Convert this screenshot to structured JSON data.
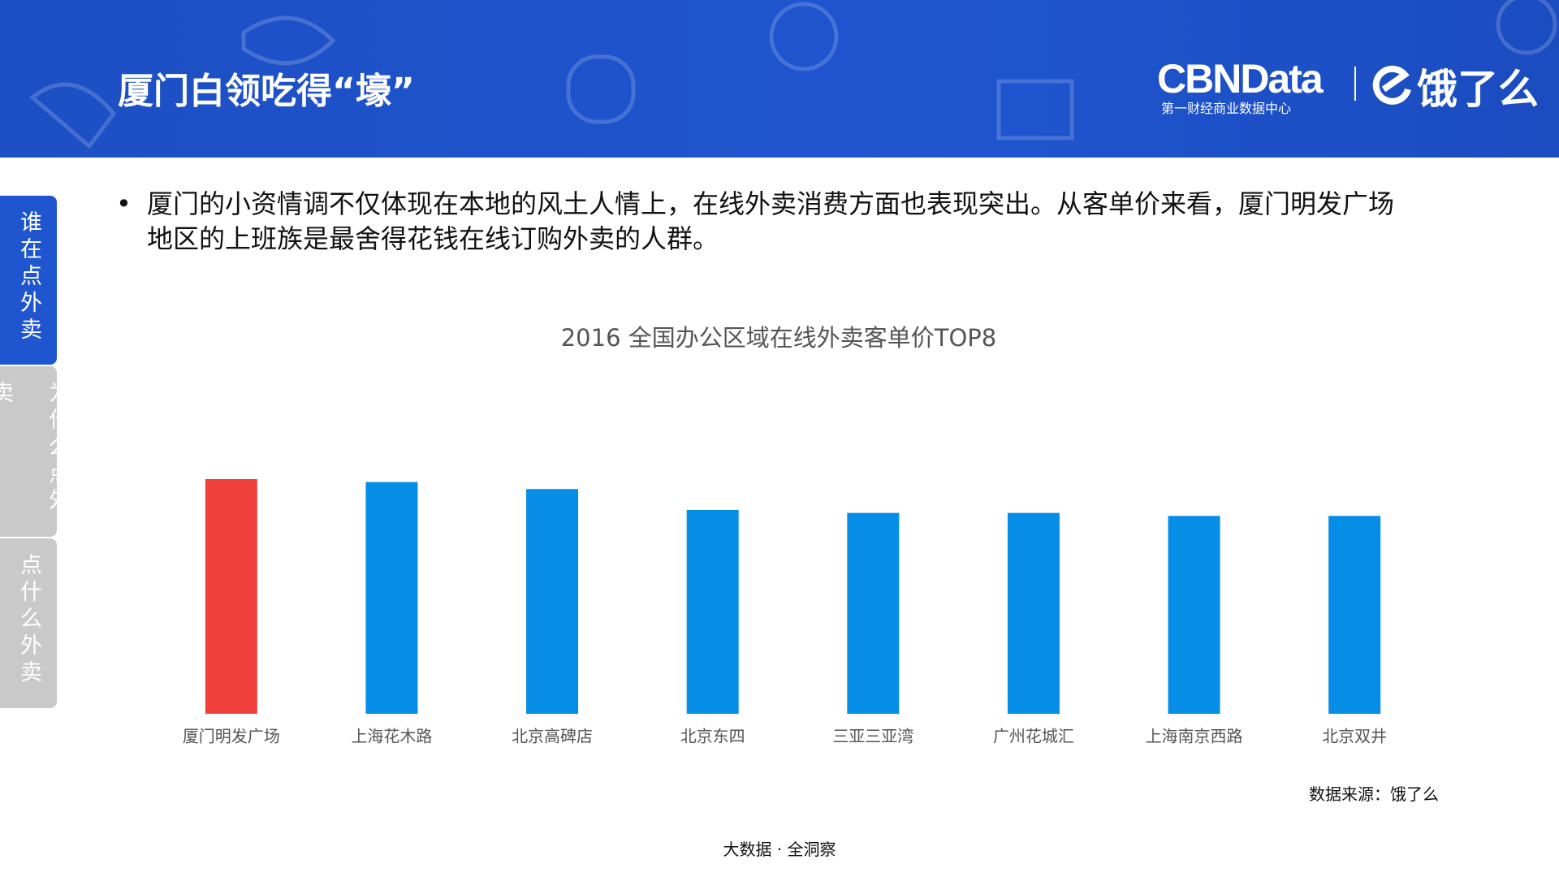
{
  "header": {
    "title": "厦门白领吃得“壕”",
    "brand": "CBNData",
    "brand_subtitle": "第一财经商业数据中心",
    "partner": "饿了么"
  },
  "side_tabs": [
    "谁在点外卖",
    "为什么点外卖",
    "点什么外卖"
  ],
  "bullet": "厦门的小资情调不仅体现在本地的风土人情上，在线外卖消费方面也表现突出。从客单价来看，厦门明发广场地区的上班族是最舍得花钱在线订购外卖的人群。",
  "chart_data": {
    "type": "bar",
    "title": "2016 全国办公区域在线外卖客单价TOP8",
    "categories": [
      "厦门明发广场",
      "上海花木路",
      "北京高碑店",
      "北京东四",
      "三亚三亚湾",
      "广州花城汇",
      "上海南京西路",
      "北京双井"
    ],
    "values": [
      236,
      233,
      226,
      205,
      202,
      202,
      199,
      199
    ],
    "colors": [
      "#f0403c",
      "#068de6",
      "#068de6",
      "#068de6",
      "#068de6",
      "#068de6",
      "#068de6",
      "#068de6"
    ]
  },
  "source": "数据来源：饿了么",
  "footer": "大数据 · 全洞察"
}
